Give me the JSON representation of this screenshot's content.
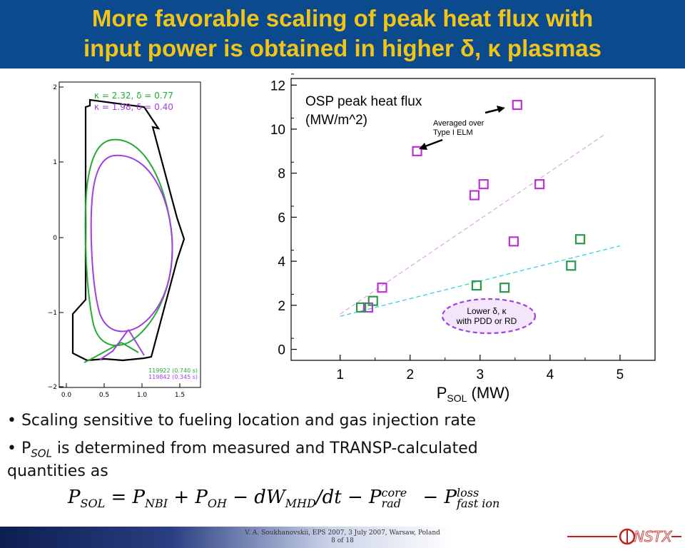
{
  "title": {
    "line1": "More favorable scaling of peak heat flux with",
    "line2": "input power is obtained in higher δ, κ plasmas"
  },
  "equilibrium_panel": {
    "legend": [
      "κ = 2.32, δ = 0.77",
      "κ = 1.98, δ = 0.40"
    ],
    "shots": [
      "119922 (0.740 s)",
      "119842 (0.345 s)"
    ],
    "colors": {
      "high": "#22aa33",
      "low": "#a040e0",
      "wall": "#000000"
    },
    "x_ticks": [
      "0.0",
      "0.5",
      "1.0",
      "1.5"
    ],
    "y_ticks": [
      "2",
      "1",
      "0",
      "−1",
      "−2"
    ]
  },
  "chart_data": {
    "type": "scatter",
    "annotation_title": [
      "OSP peak heat flux",
      "(MW/m^2)"
    ],
    "annotation_arrow": [
      "Averaged over",
      "Type I ELM"
    ],
    "annotation_ellipse": [
      "Lower δ, κ",
      "with PDD or RD"
    ],
    "xlabel_main": "P",
    "xlabel_sub": "SOL",
    "xlabel_unit": " (MW)",
    "xlim": [
      0.3,
      5.5
    ],
    "ylim": [
      -0.5,
      12.3
    ],
    "x_ticks": [
      1,
      2,
      3,
      4,
      5
    ],
    "y_ticks": [
      0,
      2,
      4,
      6,
      8,
      10,
      12
    ],
    "series": [
      {
        "color": "#c030d8",
        "points": [
          [
            1.4,
            1.9
          ],
          [
            1.6,
            2.8
          ],
          [
            2.1,
            9.0
          ],
          [
            2.92,
            7.0
          ],
          [
            3.05,
            7.5
          ],
          [
            3.48,
            4.9
          ],
          [
            3.53,
            11.1
          ],
          [
            3.85,
            7.5
          ]
        ],
        "fit": [
          [
            1.0,
            1.6
          ],
          [
            4.8,
            9.8
          ]
        ]
      },
      {
        "color": "#2a9a48",
        "points": [
          [
            1.3,
            1.9
          ],
          [
            1.47,
            2.2
          ],
          [
            2.95,
            2.9
          ],
          [
            3.35,
            2.8
          ],
          [
            4.3,
            3.8
          ],
          [
            4.43,
            5.0
          ]
        ],
        "fit": [
          [
            1.0,
            1.5
          ],
          [
            5.0,
            4.7
          ]
        ],
        "fit_color": "#22d0e0"
      }
    ]
  },
  "bullets": {
    "b1": "• Scaling sensitive to fueling location and gas injection rate",
    "b2_pre": "• P",
    "b2_sub": "SOL",
    "b2_post": " is determined from measured and TRANSP-calculated",
    "b3": "quantities as"
  },
  "formula": {
    "p": "P",
    "sol": "SOL",
    "eq": " = P",
    "nbi": "NBI",
    "plus": " + P",
    "oh": "OH",
    "minus1": " − dW",
    "mhd": "MHD",
    "dt": "/dt − P",
    "rad_sup": "core",
    "rad_sub": "rad",
    "minus2": " − P",
    "fast_sup": "loss",
    "fast_sub": "fast ion"
  },
  "footer": {
    "line1": "V. A. Soukhanovskii, EPS 2007, 3 July 2007, Warsaw, Poland",
    "line2": "8 of 18",
    "logo": "NSTX"
  }
}
